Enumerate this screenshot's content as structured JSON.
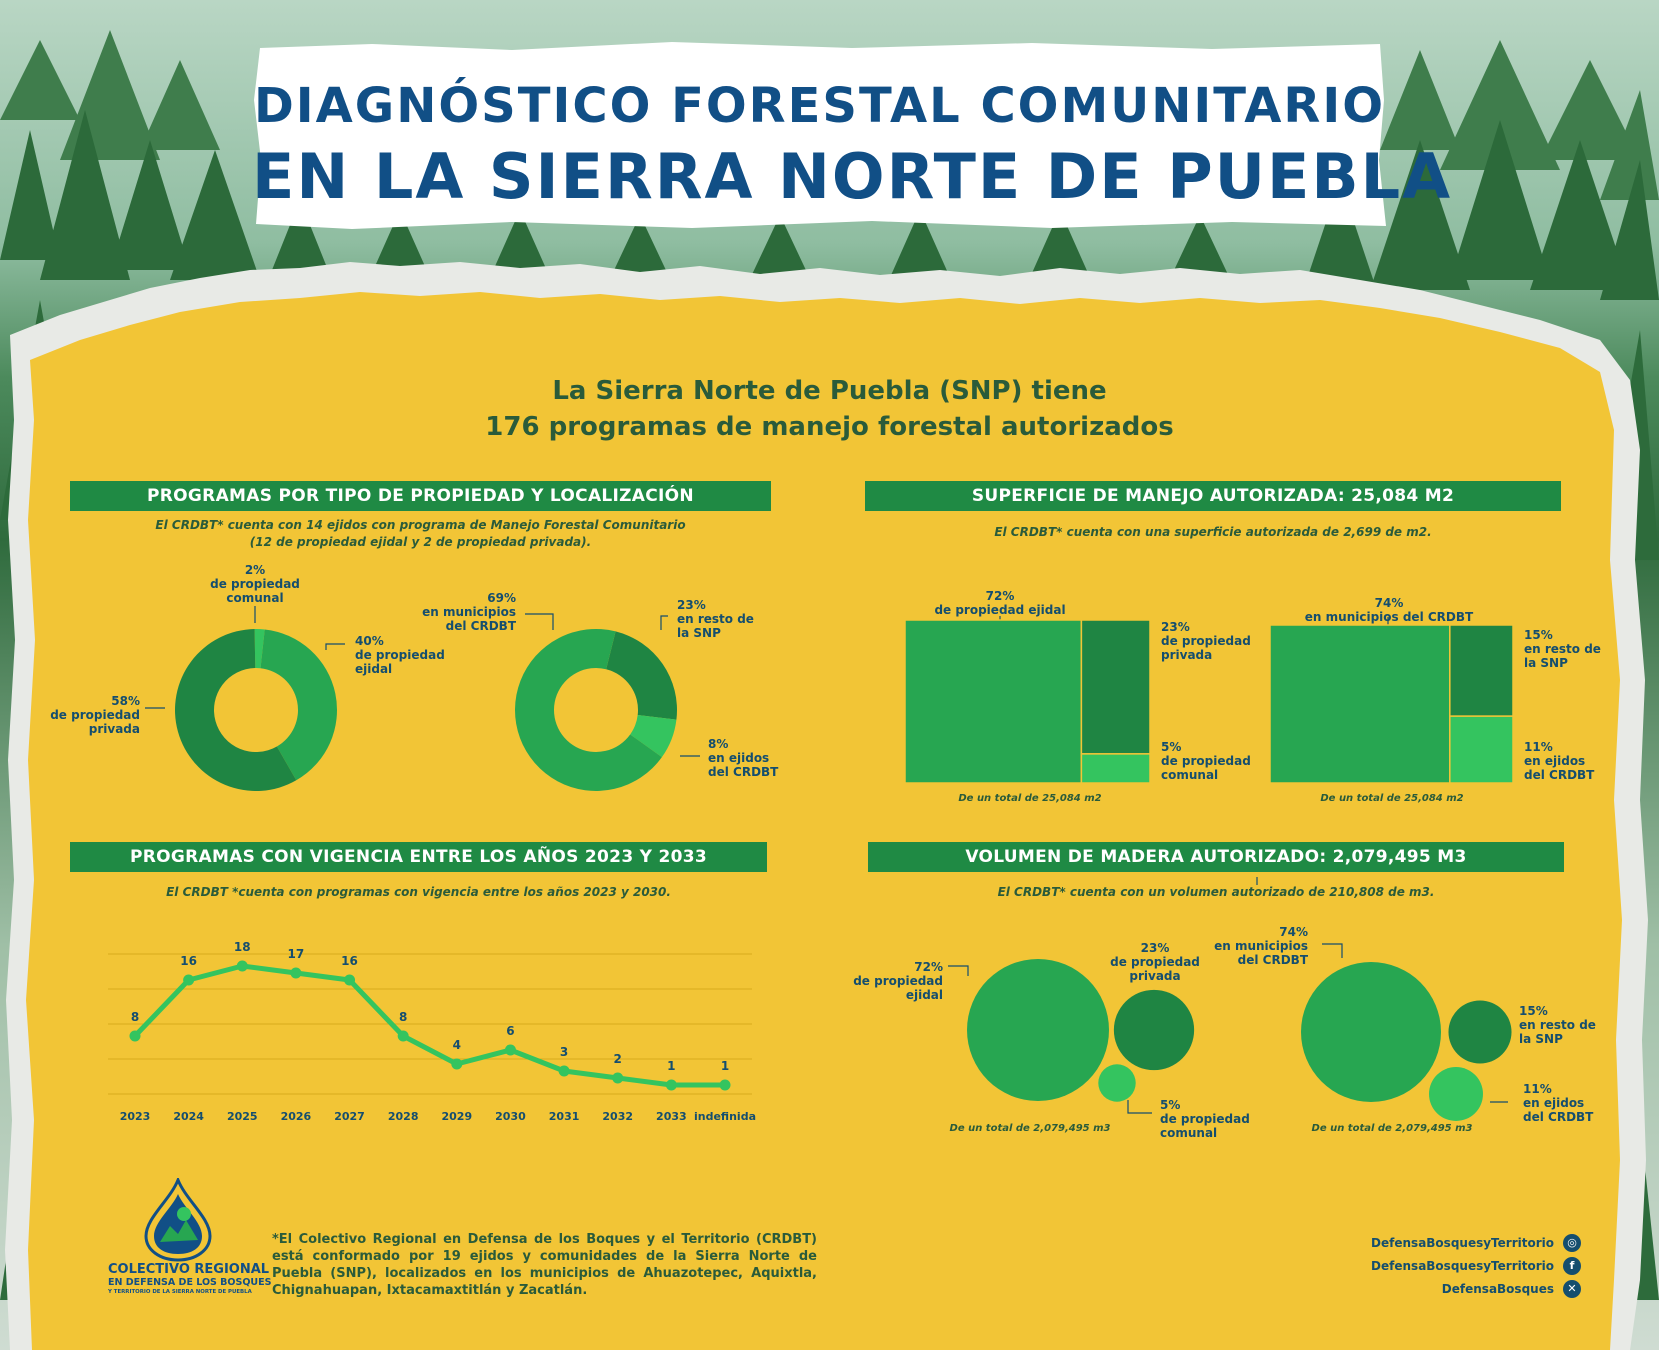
{
  "header": {
    "title_line1": "DIAGNÓSTICO FORESTAL COMUNITARIO",
    "title_line2": "EN LA SIERRA NORTE DE PUEBLA"
  },
  "intro": {
    "line1": "La Sierra Norte de Puebla (SNP) tiene",
    "line2": "176 programas de manejo forestal autorizados"
  },
  "colors": {
    "dark_green": "#1f8543",
    "mid_green": "#27a651",
    "light_green": "#34c45f",
    "navy": "#114f86",
    "label_blue": "#154e6e",
    "paper_yellow": "#f2c536"
  },
  "chart_data": [
    {
      "type": "pie",
      "section": "propiedad",
      "title": "PROGRAMAS POR TIPO DE PROPIEDAD Y LOCALIZACIÓN",
      "note": "El CRDBT* cuenta con 14 ejidos con programa de Manejo Forestal Comunitario",
      "note2": "(12  de propiedad ejidal y 2  de propiedad privada).",
      "slices": [
        {
          "label": "2%",
          "desc": "de propiedad comunal",
          "value": 2
        },
        {
          "label": "40%",
          "desc": "de propiedad ejidal",
          "value": 40
        },
        {
          "label": "58%",
          "desc": "de propiedad privada",
          "value": 58
        }
      ]
    },
    {
      "type": "pie",
      "section": "localizacion",
      "slices": [
        {
          "label": "23%",
          "desc": "en resto de la SNP",
          "value": 23
        },
        {
          "label": "8%",
          "desc": "en ejidos del CRDBT",
          "value": 8
        },
        {
          "label": "69%",
          "desc": "en municipios del CRDBT",
          "value": 69
        }
      ]
    },
    {
      "type": "treemap",
      "section": "superficie",
      "title": "SUPERFICIE DE MANEJO AUTORIZADA: 25,084 M2",
      "note": "El CRDBT* cuenta con una superficie autorizada de 2,699 de m2.",
      "groups": [
        {
          "total_note": "De un total de 25,084 m2",
          "cells": [
            {
              "label": "72%",
              "desc": "de propiedad ejidal",
              "value": 72
            },
            {
              "label": "23%",
              "desc": "de propiedad privada",
              "value": 23
            },
            {
              "label": "5%",
              "desc": "de propiedad comunal",
              "value": 5
            }
          ]
        },
        {
          "total_note": "De un total de 25,084 m2",
          "cells": [
            {
              "label": "74%",
              "desc": "en municipios del CRDBT",
              "value": 74
            },
            {
              "label": "15%",
              "desc": "en resto de la SNP",
              "value": 15
            },
            {
              "label": "11%",
              "desc": "en ejidos del CRDBT",
              "value": 11
            }
          ]
        }
      ]
    },
    {
      "type": "line",
      "section": "vigencia",
      "title": "PROGRAMAS CON VIGENCIA ENTRE LOS AÑOS 2023 Y 2033",
      "note": "El CRDBT *cuenta con programas con vigencia entre los años 2023 y 2030.",
      "categories": [
        "2023",
        "2024",
        "2025",
        "2026",
        "2027",
        "2028",
        "2029",
        "2030",
        "2031",
        "2032",
        "2033",
        "indefinida"
      ],
      "values": [
        8,
        16,
        18,
        17,
        16,
        8,
        4,
        6,
        3,
        2,
        1,
        1
      ],
      "ylim": [
        0,
        20
      ],
      "grid": true
    },
    {
      "type": "bubble",
      "section": "volumen",
      "title": "VOLUMEN DE MADERA AUTORIZADO:  2,079,495 M3",
      "note": "El CRDBT* cuenta con un volumen autorizado de 210,808 de m3.",
      "groups": [
        {
          "total_note": "De un total de 2,079,495 m3",
          "bubbles": [
            {
              "label": "72%",
              "desc": "de propiedad ejidal",
              "value": 72
            },
            {
              "label": "23%",
              "desc": "de propiedad privada",
              "value": 23
            },
            {
              "label": "5%",
              "desc": "de propiedad comunal",
              "value": 5
            }
          ]
        },
        {
          "total_note": "De un total de 2,079,495 m3",
          "bubbles": [
            {
              "label": "74%",
              "desc": "en municipios del CRDBT",
              "value": 74
            },
            {
              "label": "15%",
              "desc": "en resto de la SNP",
              "value": 15
            },
            {
              "label": "11%",
              "desc": "en ejidos del CRDBT",
              "value": 11
            }
          ]
        }
      ]
    }
  ],
  "footer": {
    "logo_line1": "COLECTIVO REGIONAL",
    "logo_line2": "EN DEFENSA DE LOS BOSQUES",
    "logo_line3": "Y TERRITORIO DE LA SIERRA NORTE DE PUEBLA",
    "footnote": "*El Colectivo Regional en Defensa de los Boques y el Territorio (CRDBT) está conformado por 19 ejidos y comunidades de la Sierra Norte de Puebla (SNP), localizados en los municipios de Ahuazotepec, Aquixtla, Chignahuapan, Ixtacamaxtitlán y Zacatlán.",
    "social": [
      {
        "handle": "DefensaBosquesyTerritorio",
        "icon": "instagram-icon"
      },
      {
        "handle": "DefensaBosquesyTerritorio",
        "icon": "facebook-icon"
      },
      {
        "handle": "DefensaBosques",
        "icon": "x-twitter-icon"
      }
    ]
  }
}
